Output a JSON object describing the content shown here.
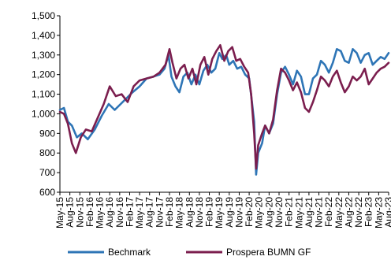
{
  "chart_data": {
    "type": "line",
    "title": "",
    "xlabel": "",
    "ylabel": "",
    "ylim": [
      600,
      1500
    ],
    "yticks": [
      600,
      700,
      800,
      900,
      1000,
      1100,
      1200,
      1300,
      1400,
      1500
    ],
    "ytick_labels": [
      "600",
      "700",
      "800",
      "900",
      "1,000",
      "1,100",
      "1,200",
      "1,300",
      "1,400",
      "1,500"
    ],
    "x_tick_labels": [
      "May-15",
      "Aug-15",
      "Nov-15",
      "Feb-16",
      "May-16",
      "Aug-16",
      "Nov-16",
      "Feb-17",
      "May-17",
      "Aug-17",
      "Nov-17",
      "Feb-18",
      "May-18",
      "Aug-18",
      "Nov-18",
      "Feb-19",
      "May-19",
      "Aug-19",
      "Nov-19",
      "Feb-20",
      "May-20",
      "Aug-20",
      "Nov-20",
      "Feb-21",
      "May-21",
      "Aug-21",
      "Nov-21",
      "Feb-22",
      "May-22",
      "Aug-22",
      "Nov-22",
      "Feb-23",
      "May-23",
      "Aug-23"
    ],
    "grid": false,
    "legend_position": "bottom",
    "series": [
      {
        "name": "Bechmark",
        "color": "#2E75B6",
        "values": [
          [
            0,
            1020
          ],
          [
            0.4,
            1030
          ],
          [
            0.8,
            960
          ],
          [
            1.2,
            940
          ],
          [
            1.7,
            880
          ],
          [
            2.2,
            900
          ],
          [
            2.8,
            870
          ],
          [
            3.5,
            920
          ],
          [
            4.2,
            990
          ],
          [
            4.9,
            1050
          ],
          [
            5.5,
            1020
          ],
          [
            6.1,
            1050
          ],
          [
            6.7,
            1080
          ],
          [
            7.3,
            1110
          ],
          [
            8,
            1140
          ],
          [
            8.7,
            1180
          ],
          [
            9.4,
            1190
          ],
          [
            10,
            1200
          ],
          [
            10.5,
            1230
          ],
          [
            10.9,
            1300
          ],
          [
            11.2,
            1190
          ],
          [
            11.6,
            1140
          ],
          [
            12,
            1110
          ],
          [
            12.4,
            1190
          ],
          [
            12.8,
            1210
          ],
          [
            13.2,
            1150
          ],
          [
            13.6,
            1200
          ],
          [
            14,
            1150
          ],
          [
            14.4,
            1220
          ],
          [
            14.8,
            1250
          ],
          [
            15.2,
            1210
          ],
          [
            15.6,
            1230
          ],
          [
            16,
            1310
          ],
          [
            16.3,
            1280
          ],
          [
            16.7,
            1300
          ],
          [
            17,
            1250
          ],
          [
            17.4,
            1270
          ],
          [
            17.8,
            1230
          ],
          [
            18.2,
            1240
          ],
          [
            18.6,
            1200
          ],
          [
            19,
            1180
          ],
          [
            19.3,
            1050
          ],
          [
            19.5,
            960
          ],
          [
            19.7,
            690
          ],
          [
            19.9,
            800
          ],
          [
            20.3,
            850
          ],
          [
            20.6,
            940
          ],
          [
            21,
            900
          ],
          [
            21.4,
            950
          ],
          [
            21.8,
            1100
          ],
          [
            22.2,
            1210
          ],
          [
            22.6,
            1240
          ],
          [
            23,
            1200
          ],
          [
            23.4,
            1150
          ],
          [
            23.8,
            1220
          ],
          [
            24.2,
            1190
          ],
          [
            24.6,
            1100
          ],
          [
            25,
            1100
          ],
          [
            25.4,
            1180
          ],
          [
            25.8,
            1200
          ],
          [
            26.2,
            1270
          ],
          [
            26.6,
            1250
          ],
          [
            27,
            1210
          ],
          [
            27.4,
            1260
          ],
          [
            27.8,
            1330
          ],
          [
            28.2,
            1320
          ],
          [
            28.6,
            1270
          ],
          [
            29,
            1260
          ],
          [
            29.4,
            1330
          ],
          [
            29.8,
            1310
          ],
          [
            30.2,
            1260
          ],
          [
            30.6,
            1300
          ],
          [
            31,
            1310
          ],
          [
            31.4,
            1250
          ],
          [
            31.8,
            1270
          ],
          [
            32.2,
            1290
          ],
          [
            32.6,
            1280
          ],
          [
            33,
            1310
          ]
        ]
      },
      {
        "name": "Prospera BUMN GF",
        "color": "#7B1E4E",
        "values": [
          [
            0,
            1010
          ],
          [
            0.4,
            1000
          ],
          [
            0.8,
            950
          ],
          [
            1.2,
            850
          ],
          [
            1.6,
            800
          ],
          [
            2.1,
            880
          ],
          [
            2.6,
            920
          ],
          [
            3.2,
            910
          ],
          [
            3.8,
            980
          ],
          [
            4.4,
            1050
          ],
          [
            5,
            1140
          ],
          [
            5.6,
            1090
          ],
          [
            6.2,
            1100
          ],
          [
            6.8,
            1060
          ],
          [
            7.4,
            1140
          ],
          [
            8,
            1170
          ],
          [
            8.7,
            1180
          ],
          [
            9.4,
            1190
          ],
          [
            10,
            1210
          ],
          [
            10.6,
            1250
          ],
          [
            11,
            1330
          ],
          [
            11.3,
            1260
          ],
          [
            11.7,
            1180
          ],
          [
            12.1,
            1230
          ],
          [
            12.5,
            1250
          ],
          [
            12.9,
            1180
          ],
          [
            13.3,
            1230
          ],
          [
            13.7,
            1150
          ],
          [
            14.1,
            1250
          ],
          [
            14.5,
            1290
          ],
          [
            14.9,
            1200
          ],
          [
            15.3,
            1280
          ],
          [
            15.7,
            1320
          ],
          [
            16.1,
            1350
          ],
          [
            16.5,
            1270
          ],
          [
            16.9,
            1320
          ],
          [
            17.3,
            1340
          ],
          [
            17.7,
            1270
          ],
          [
            18.1,
            1280
          ],
          [
            18.5,
            1240
          ],
          [
            18.9,
            1210
          ],
          [
            19.2,
            1100
          ],
          [
            19.5,
            900
          ],
          [
            19.7,
            720
          ],
          [
            19.9,
            840
          ],
          [
            20.3,
            900
          ],
          [
            20.6,
            940
          ],
          [
            21,
            900
          ],
          [
            21.4,
            970
          ],
          [
            21.8,
            1120
          ],
          [
            22.2,
            1230
          ],
          [
            22.6,
            1210
          ],
          [
            23,
            1170
          ],
          [
            23.4,
            1120
          ],
          [
            23.8,
            1160
          ],
          [
            24.2,
            1110
          ],
          [
            24.6,
            1030
          ],
          [
            25,
            1010
          ],
          [
            25.4,
            1060
          ],
          [
            25.8,
            1120
          ],
          [
            26.2,
            1190
          ],
          [
            26.6,
            1170
          ],
          [
            27,
            1140
          ],
          [
            27.4,
            1190
          ],
          [
            27.8,
            1220
          ],
          [
            28.2,
            1160
          ],
          [
            28.6,
            1110
          ],
          [
            29,
            1140
          ],
          [
            29.4,
            1190
          ],
          [
            29.8,
            1170
          ],
          [
            30.2,
            1190
          ],
          [
            30.6,
            1230
          ],
          [
            31,
            1150
          ],
          [
            31.4,
            1180
          ],
          [
            31.8,
            1210
          ],
          [
            32.2,
            1230
          ],
          [
            32.6,
            1240
          ],
          [
            33,
            1260
          ]
        ]
      }
    ]
  }
}
